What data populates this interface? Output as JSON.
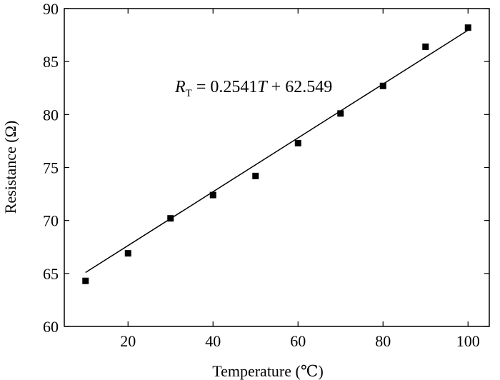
{
  "chart_data": {
    "type": "scatter",
    "xlabel": "Temperature (℃)",
    "ylabel": "Resistance (Ω)",
    "xlim": [
      5,
      105
    ],
    "ylim": [
      60,
      90
    ],
    "xticks": [
      20,
      40,
      60,
      80,
      100
    ],
    "yticks": [
      60,
      65,
      70,
      75,
      80,
      85,
      90
    ],
    "grid": false,
    "points": {
      "x": [
        10,
        20,
        30,
        40,
        50,
        60,
        70,
        80,
        90,
        100
      ],
      "y": [
        64.3,
        66.9,
        70.2,
        72.4,
        74.2,
        77.3,
        80.1,
        82.7,
        86.4,
        88.2
      ]
    },
    "fit_line": {
      "slope": 0.2541,
      "intercept": 62.549,
      "x_range": [
        10,
        100
      ]
    },
    "annotation": {
      "lhs_symbol": "R",
      "lhs_subscript": "T",
      "equals": " = ",
      "coefficient": "0.2541",
      "variable": "T",
      "constant_part": " + 62.549"
    }
  }
}
